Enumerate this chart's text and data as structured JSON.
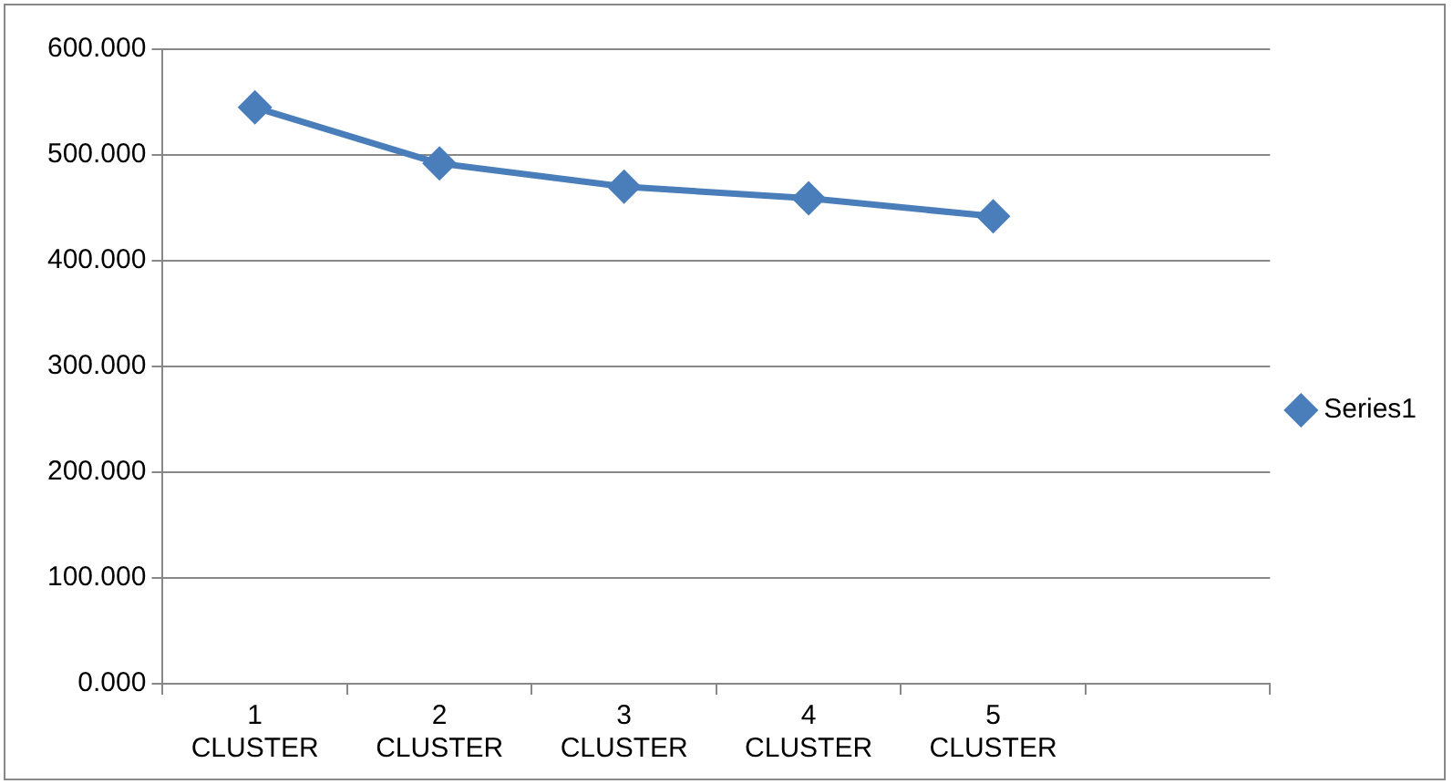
{
  "chart_data": {
    "type": "line",
    "categories": [
      "1 CLUSTER",
      "2 CLUSTER",
      "3 CLUSTER",
      "4 CLUSTER",
      "5 CLUSTER",
      null
    ],
    "series": [
      {
        "name": "Series1",
        "color": "#4a7ebb",
        "values": [
          545,
          492,
          470,
          459,
          442,
          null
        ]
      }
    ],
    "ylim": [
      0,
      600
    ],
    "yticks": [
      {
        "value": 0,
        "label": "0.000"
      },
      {
        "value": 100,
        "label": "100.000"
      },
      {
        "value": 200,
        "label": "200.000"
      },
      {
        "value": 300,
        "label": "300.000"
      },
      {
        "value": 400,
        "label": "400.000"
      },
      {
        "value": 500,
        "label": "500.000"
      },
      {
        "value": 600,
        "label": "600.000"
      }
    ],
    "grid": "y",
    "legend": "right",
    "marker": "diamond",
    "line_style": "solid"
  }
}
